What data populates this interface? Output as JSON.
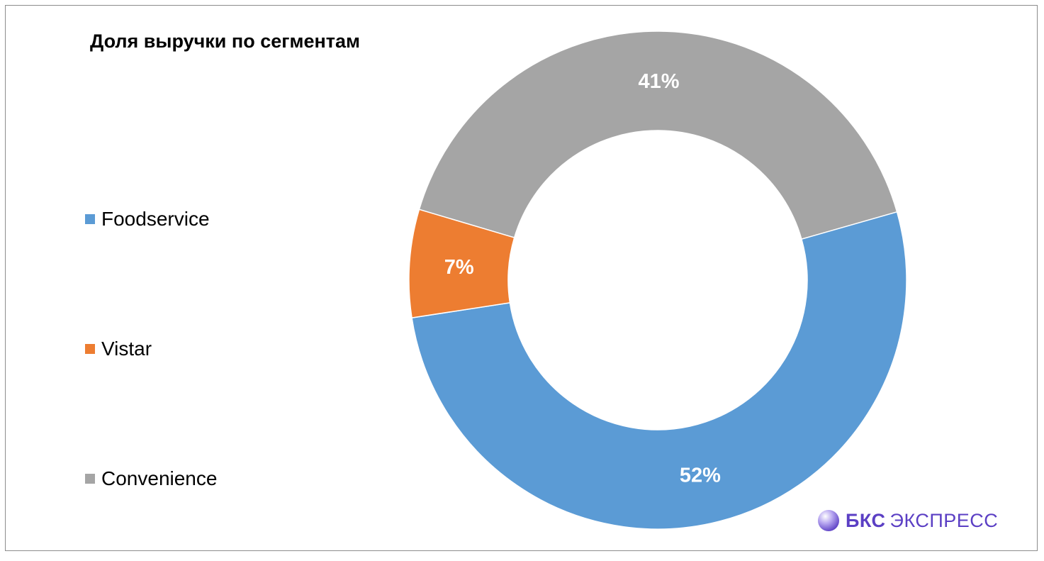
{
  "chart_data": {
    "type": "pie",
    "title": "Доля выручки по сегментам",
    "donut": true,
    "legend_position": "left",
    "slices": [
      {
        "name": "Foodservice",
        "value": 52,
        "label": "52%",
        "color": "#5b9bd5"
      },
      {
        "name": "Vistar",
        "value": 7,
        "label": "7%",
        "color": "#ed7d31"
      },
      {
        "name": "Convenience",
        "value": 41,
        "label": "41%",
        "color": "#a5a5a5"
      }
    ]
  },
  "logo": {
    "bold": "БКС",
    "light": "ЭКСПРЕСС",
    "icon": "sphere-logo-icon",
    "color": "#5b3fc4"
  }
}
